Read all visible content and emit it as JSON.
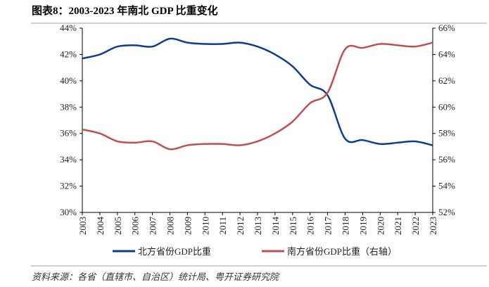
{
  "title": "图表8：2003-2023 年南北 GDP 比重变化",
  "source": "资料来源：各省（直辖市、自治区）统计局、粤开证券研究院",
  "chart_data": {
    "type": "line",
    "title": "图表8：2003-2023 年南北 GDP 比重变化",
    "x": [
      "2003",
      "2004",
      "2005",
      "2006",
      "2007",
      "2008",
      "2009",
      "2010",
      "2011",
      "2012",
      "2013",
      "2014",
      "2015",
      "2016",
      "2017",
      "2018",
      "2019",
      "2020",
      "2021",
      "2022",
      "2023"
    ],
    "y_left": {
      "ylim": [
        30,
        44
      ],
      "ticks": [
        30,
        32,
        34,
        36,
        38,
        40,
        42,
        44
      ],
      "tick_labels": [
        "30%",
        "32%",
        "34%",
        "36%",
        "38%",
        "40%",
        "42%",
        "44%"
      ]
    },
    "y_right": {
      "ylim": [
        52,
        66
      ],
      "ticks": [
        52,
        54,
        56,
        58,
        60,
        62,
        64,
        66
      ],
      "tick_labels": [
        "52%",
        "54%",
        "56%",
        "58%",
        "60%",
        "62%",
        "64%",
        "66%"
      ]
    },
    "grid": false,
    "legend_placement": "bottom",
    "series": [
      {
        "name": "北方省份GDP比重",
        "axis": "left",
        "color": "#0b3d91",
        "values": [
          41.7,
          42.0,
          42.6,
          42.7,
          42.6,
          43.2,
          42.9,
          42.8,
          42.8,
          42.9,
          42.6,
          42.0,
          41.1,
          39.7,
          38.9,
          35.6,
          35.5,
          35.2,
          35.3,
          35.4,
          35.1
        ]
      },
      {
        "name": "南方省份GDP比重（右轴）",
        "axis": "right",
        "color": "#c0504d",
        "values": [
          58.3,
          58.0,
          57.4,
          57.3,
          57.4,
          56.8,
          57.1,
          57.2,
          57.2,
          57.1,
          57.4,
          58.0,
          58.9,
          60.3,
          61.1,
          64.4,
          64.5,
          64.8,
          64.7,
          64.6,
          64.9
        ]
      }
    ]
  }
}
